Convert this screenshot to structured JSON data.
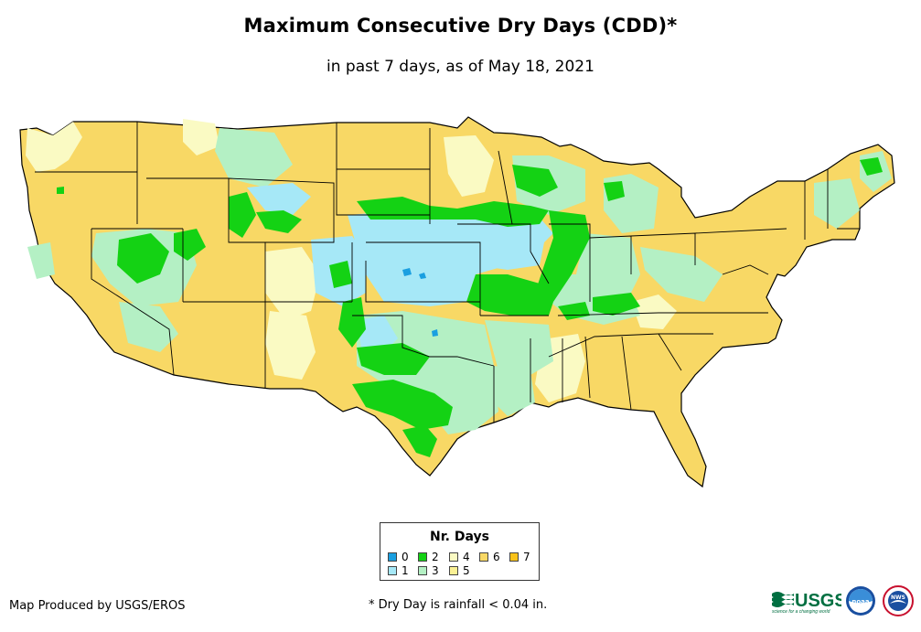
{
  "title": "Maximum Consecutive Dry Days (CDD)*",
  "subtitle": "in past 7 days, as of May 18, 2021",
  "legend": {
    "title": "Nr. Days",
    "items": [
      {
        "label": "0",
        "color": "#1a9fe0"
      },
      {
        "label": "1",
        "color": "#a6e8f7"
      },
      {
        "label": "2",
        "color": "#14d214"
      },
      {
        "label": "3",
        "color": "#b4f0c4"
      },
      {
        "label": "4",
        "color": "#fafac3"
      },
      {
        "label": "5",
        "color": "#faf094"
      },
      {
        "label": "6",
        "color": "#f8d865"
      },
      {
        "label": "7",
        "color": "#f8c21a"
      }
    ]
  },
  "credit": "Map Produced by USGS/EROS",
  "footnote": "* Dry Day is rainfall < 0.04 in.",
  "logos": {
    "usgs": "USGS",
    "usgs_tagline": "science for a changing world",
    "noaa": "noaa",
    "nws": "NWS"
  },
  "colors": {
    "base": "#f8d865",
    "border": "#000000"
  }
}
